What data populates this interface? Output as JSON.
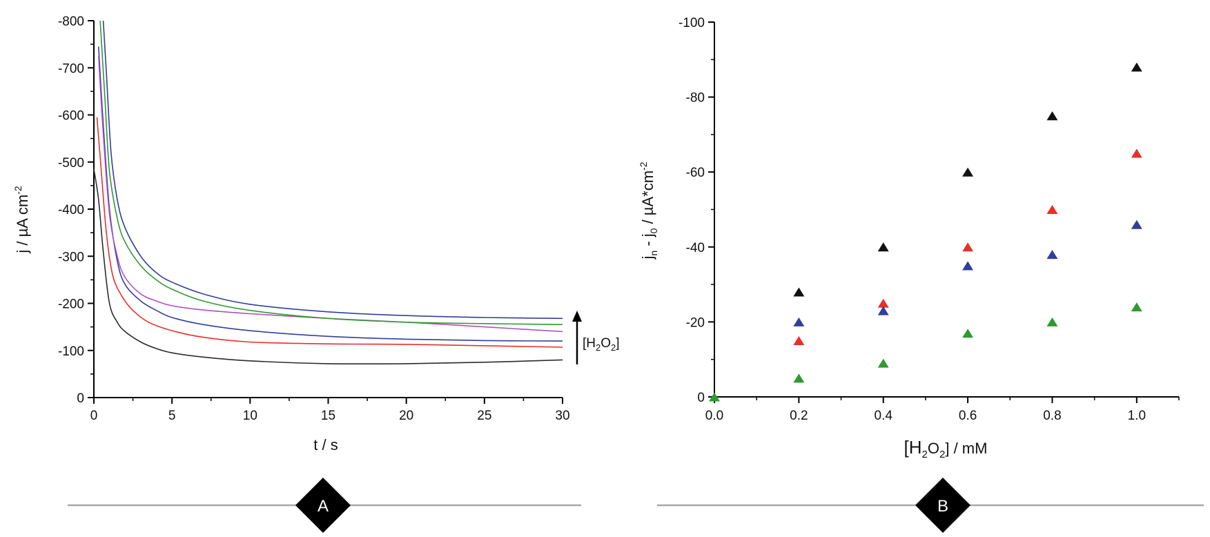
{
  "chart_data": [
    {
      "panel": "A",
      "type": "line",
      "xlabel": "t / s",
      "ylabel_main": "j / µA cm",
      "ylabel_sup": "-2",
      "xlim": [
        0,
        30
      ],
      "ylim": [
        0,
        -800
      ],
      "xticks": [
        0,
        5,
        10,
        15,
        20,
        25,
        30
      ],
      "yticks": [
        0,
        -100,
        -200,
        -300,
        -400,
        -500,
        -600,
        -700,
        -800
      ],
      "annotation": {
        "text_open": "[H",
        "sub1": "2",
        "mid": "O",
        "sub2": "2",
        "text_close": "]"
      },
      "series": [
        {
          "color": "#2b2b2b",
          "x": [
            0,
            0.3,
            0.6,
            1,
            1.5,
            2,
            3,
            4,
            5,
            7,
            10,
            15,
            20,
            25,
            30
          ],
          "y": [
            -485,
            -420,
            -310,
            -200,
            -160,
            -140,
            -118,
            -104,
            -95,
            -86,
            -78,
            -72,
            -72,
            -75,
            -80
          ]
        },
        {
          "color": "#e8302a",
          "x": [
            0.2,
            0.5,
            0.8,
            1.2,
            1.8,
            2.5,
            3.5,
            5,
            7,
            10,
            15,
            20,
            25,
            30
          ],
          "y": [
            -595,
            -470,
            -350,
            -260,
            -215,
            -185,
            -160,
            -142,
            -128,
            -118,
            -114,
            -113,
            -110,
            -107
          ]
        },
        {
          "color": "#2f3f9c",
          "x": [
            0.3,
            0.6,
            1,
            1.5,
            2,
            3,
            4,
            5,
            7,
            10,
            15,
            20,
            25,
            30
          ],
          "y": [
            -745,
            -580,
            -400,
            -290,
            -240,
            -205,
            -185,
            -170,
            -155,
            -142,
            -130,
            -124,
            -121,
            -120
          ]
        },
        {
          "color": "#b04fc4",
          "x": [
            0.3,
            0.6,
            1,
            1.5,
            2,
            3,
            4,
            5,
            7,
            10,
            15,
            20,
            25,
            30
          ],
          "y": [
            -725,
            -560,
            -390,
            -300,
            -255,
            -220,
            -205,
            -195,
            -186,
            -178,
            -168,
            -160,
            -150,
            -140
          ]
        },
        {
          "color": "#2f9a2f",
          "x": [
            0.4,
            0.7,
            1,
            1.5,
            2,
            3,
            4,
            5,
            7,
            10,
            15,
            20,
            25,
            30
          ],
          "y": [
            -800,
            -640,
            -480,
            -380,
            -330,
            -280,
            -250,
            -230,
            -205,
            -185,
            -168,
            -160,
            -157,
            -155
          ]
        },
        {
          "color": "#2f3f9c",
          "x": [
            0.6,
            0.8,
            1.1,
            1.5,
            2,
            3,
            4,
            5,
            7,
            10,
            15,
            20,
            25,
            30
          ],
          "y": [
            -800,
            -690,
            -520,
            -420,
            -360,
            -300,
            -265,
            -245,
            -220,
            -198,
            -182,
            -174,
            -170,
            -168
          ]
        }
      ],
      "badge": "A"
    },
    {
      "panel": "B",
      "type": "scatter",
      "xlabel_open": "[H",
      "xlabel_sub1": "2",
      "xlabel_mid": "O",
      "xlabel_sub2": "2",
      "xlabel_close": "] / mM",
      "ylabel_j": "j",
      "ylabel_n": "n",
      "ylabel_minus": " - j",
      "ylabel_0": "0",
      "ylabel_unit": " / µA*cm",
      "ylabel_sup": "-2",
      "xlim": [
        0,
        1.1
      ],
      "ylim": [
        0,
        -100
      ],
      "xticks": [
        0.0,
        0.2,
        0.4,
        0.6,
        0.8,
        1.0
      ],
      "xtick_labels": [
        "0.0",
        "0.2",
        "0.4",
        "0.6",
        "0.8",
        "1.0"
      ],
      "yticks": [
        0,
        -20,
        -40,
        -60,
        -80,
        -100
      ],
      "series": [
        {
          "color": "#111111",
          "x": [
            0.2,
            0.4,
            0.6,
            0.8,
            1.0
          ],
          "y": [
            -28,
            -40,
            -60,
            -75,
            -88
          ]
        },
        {
          "color": "#e8302a",
          "x": [
            0.2,
            0.4,
            0.6,
            0.8,
            1.0
          ],
          "y": [
            -15,
            -25,
            -40,
            -50,
            -65
          ]
        },
        {
          "color": "#2f3f9c",
          "x": [
            0.2,
            0.4,
            0.6,
            0.8,
            1.0
          ],
          "y": [
            -20,
            -23,
            -35,
            -38,
            -46
          ]
        },
        {
          "color": "#2f9a2f",
          "x": [
            0.0,
            0.2,
            0.4,
            0.6,
            0.8,
            1.0
          ],
          "y": [
            0,
            -5,
            -9,
            -17,
            -20,
            -24
          ]
        }
      ],
      "badge": "B"
    }
  ]
}
